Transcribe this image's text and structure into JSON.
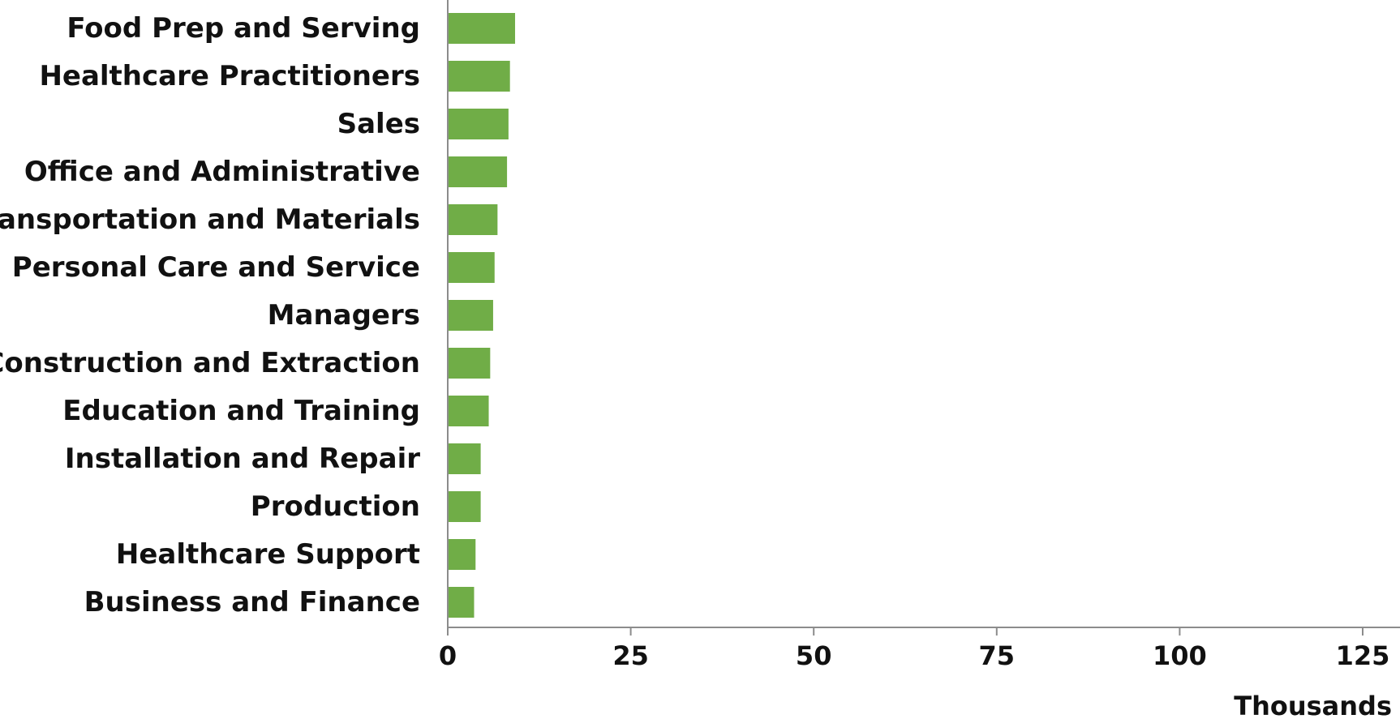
{
  "chart_data": {
    "type": "bar",
    "orientation": "horizontal",
    "categories": [
      "Food Prep and Serving",
      "Healthcare Practitioners",
      "Sales",
      "Office and Administrative",
      "Transportation and Materials",
      "Personal Care and Service",
      "Managers",
      "Construction and Extraction",
      "Education and Training",
      "Installation and Repair",
      "Production",
      "Healthcare Support",
      "Business and Finance"
    ],
    "values": [
      9.2,
      8.5,
      8.3,
      8.1,
      6.8,
      6.4,
      6.2,
      5.8,
      5.6,
      4.5,
      4.5,
      3.8,
      3.6
    ],
    "title": "",
    "xlabel": "",
    "ylabel": "",
    "xlim": [
      0,
      125
    ],
    "xticks": [
      "0",
      "25",
      "50",
      "75",
      "100",
      "125"
    ],
    "unit_label": "Thousands",
    "bar_color": "#70ad47",
    "axis_color": "#8c8c8c",
    "grid": false,
    "legend": "none"
  }
}
